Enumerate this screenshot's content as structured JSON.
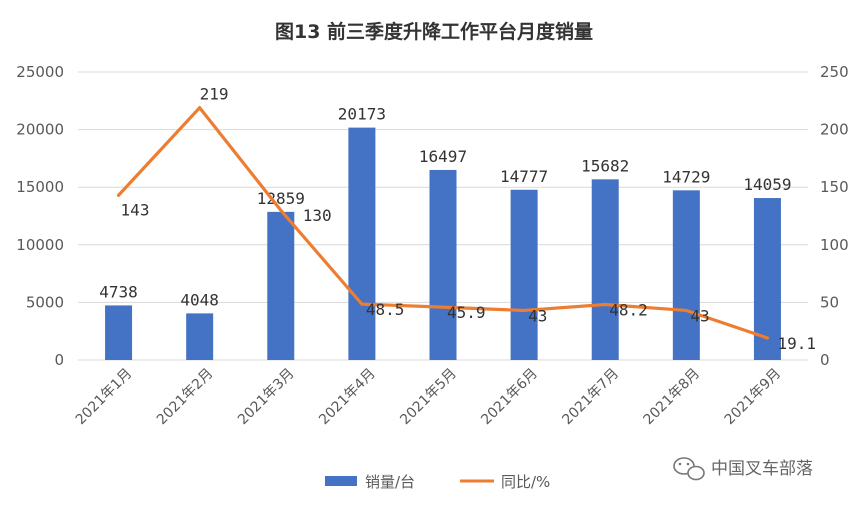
{
  "chart_data": {
    "type": "bar+line",
    "title": "图13   前三季度升降工作平台月度销量",
    "categories": [
      "2021年1月",
      "2021年2月",
      "2021年3月",
      "2021年4月",
      "2021年5月",
      "2021年6月",
      "2021年7月",
      "2021年8月",
      "2021年9月"
    ],
    "series": [
      {
        "name": "销量/台",
        "type": "bar",
        "axis": "left",
        "color": "#4472C4",
        "values": [
          4738,
          4048,
          12859,
          20173,
          16497,
          14777,
          15682,
          14729,
          14059
        ],
        "labels": [
          "4738",
          "4048",
          "12859",
          "20173",
          "16497",
          "14777",
          "15682",
          "14729",
          "14059"
        ]
      },
      {
        "name": "同比/%",
        "type": "line",
        "axis": "right",
        "color": "#ED7D31",
        "values": [
          143,
          219,
          130,
          48.5,
          45.9,
          43,
          48.2,
          43,
          19.1
        ],
        "labels": [
          "143",
          "219",
          "130",
          "48.5",
          "45.9",
          "43",
          "48.2",
          "43",
          "19.1"
        ]
      }
    ],
    "y_left": {
      "min": 0,
      "max": 25000,
      "ticks": [
        "0",
        "5000",
        "10000",
        "15000",
        "20000",
        "25000"
      ]
    },
    "y_right": {
      "min": 0,
      "max": 250,
      "ticks": [
        "0",
        "50",
        "100",
        "150",
        "200",
        "250"
      ]
    },
    "grid": true,
    "legend_position": "bottom"
  },
  "watermark": {
    "text": "中国叉车部落",
    "icon": "wechat-icon"
  }
}
